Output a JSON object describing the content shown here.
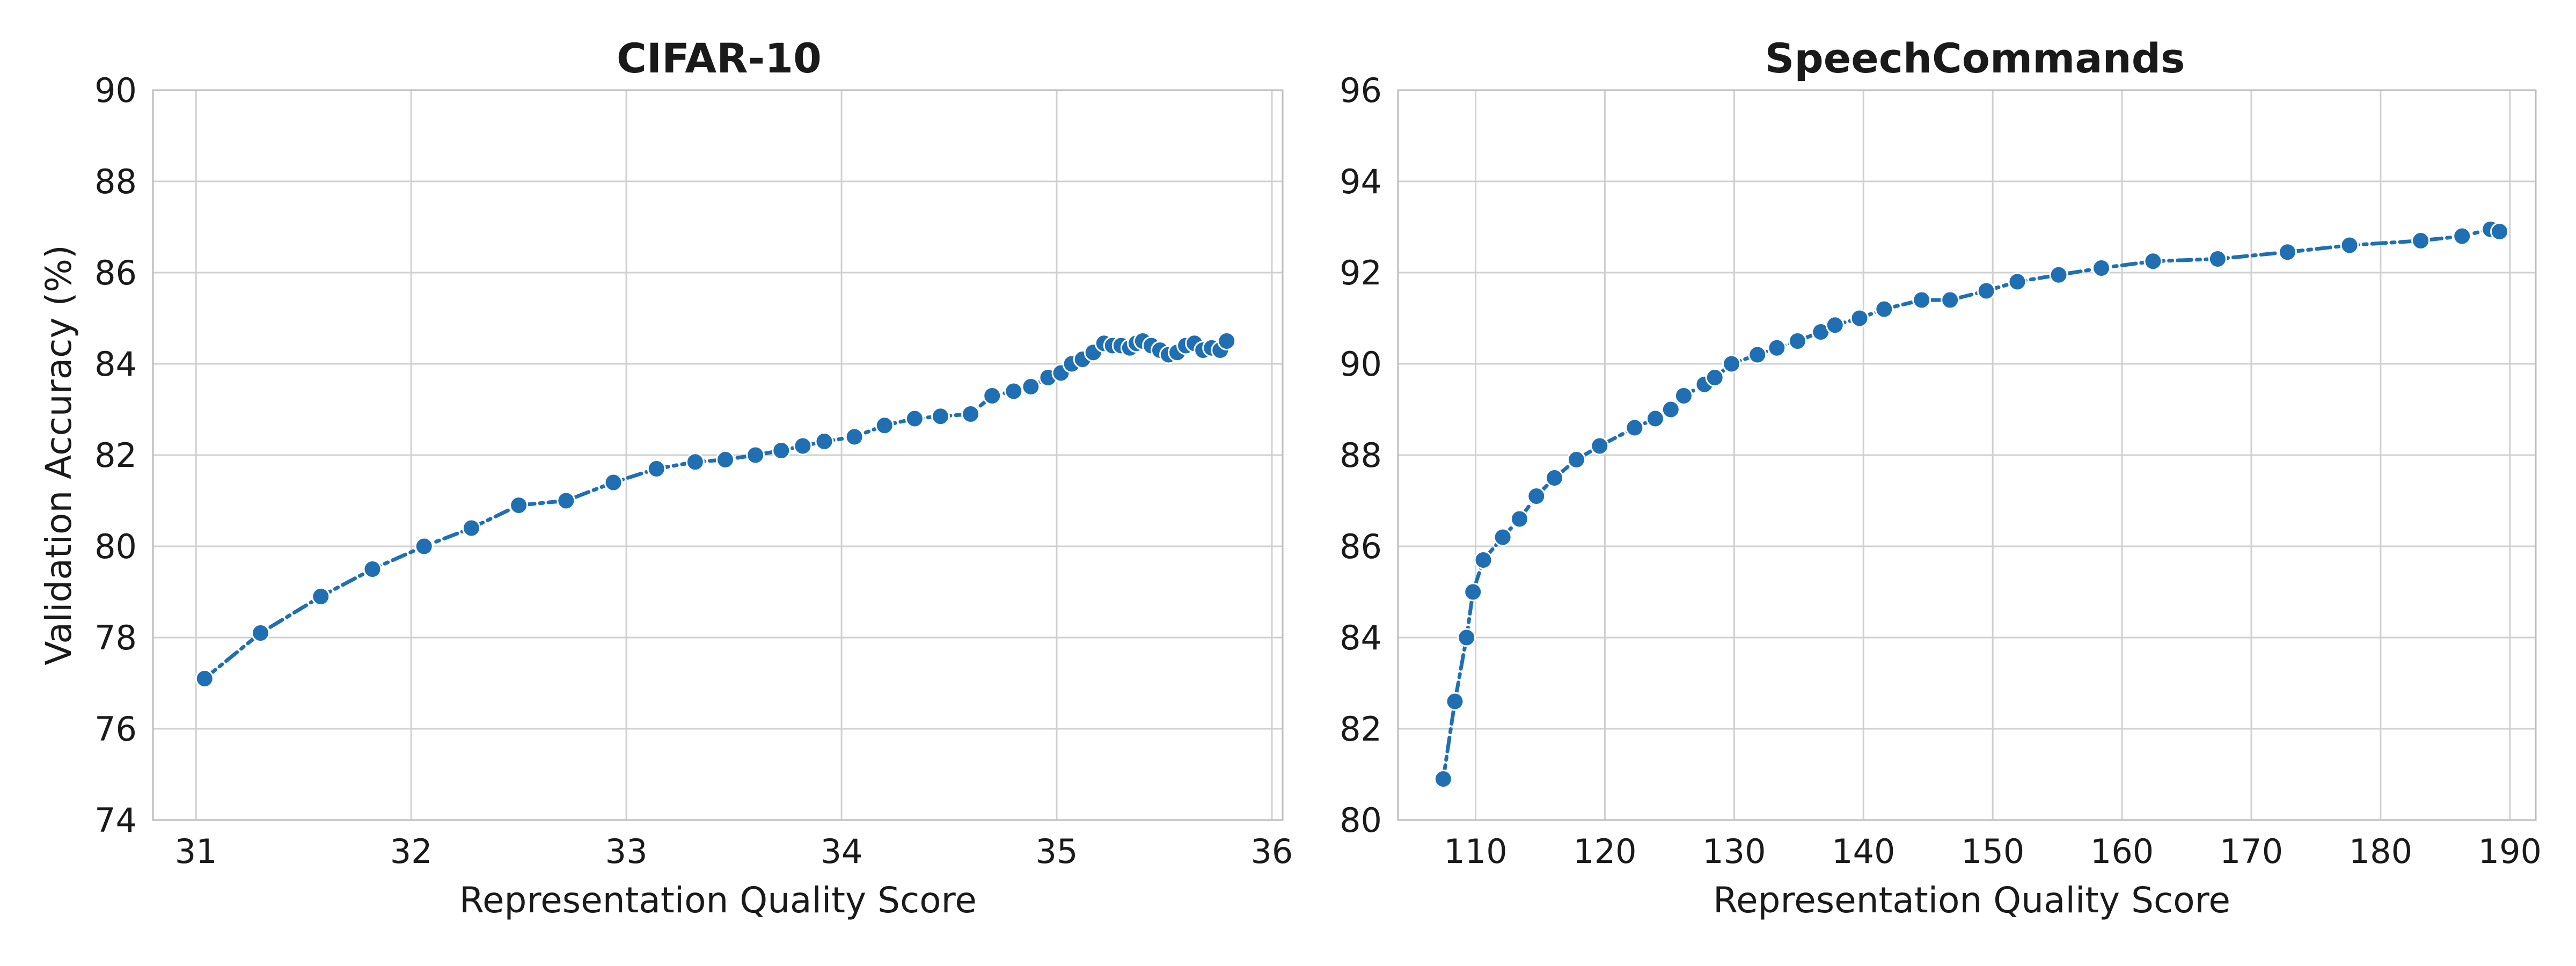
{
  "colors": {
    "series": "#1f6fb2",
    "grid": "#d0d0d0",
    "frame": "#bdbdbd"
  },
  "shared": {
    "ylabel": "Validation Accuracy (%)"
  },
  "chart_data": [
    {
      "type": "line",
      "title": "CIFAR-10",
      "xlabel": "Representation Quality Score",
      "ylabel": "Validation Accuracy (%)",
      "xlim": [
        30.8,
        36.05
      ],
      "ylim": [
        74,
        90
      ],
      "xticks": [
        31,
        32,
        33,
        34,
        35,
        36
      ],
      "yticks": [
        74,
        76,
        78,
        80,
        82,
        84,
        86,
        88,
        90
      ],
      "grid": true,
      "series": [
        {
          "x": [
            31.04,
            31.3,
            31.58,
            31.82,
            32.06,
            32.28,
            32.5,
            32.72,
            32.94,
            33.14,
            33.32,
            33.46,
            33.6,
            33.72,
            33.82,
            33.92,
            34.06,
            34.2,
            34.34,
            34.46,
            34.6,
            34.7,
            34.8,
            34.88,
            34.96,
            35.02,
            35.07,
            35.12,
            35.17,
            35.22,
            35.26,
            35.3,
            35.34,
            35.37,
            35.4,
            35.44,
            35.48,
            35.52,
            35.56,
            35.6,
            35.64,
            35.68,
            35.72,
            35.76,
            35.79
          ],
          "y": [
            77.1,
            78.1,
            78.9,
            79.5,
            80.0,
            80.4,
            80.9,
            81.0,
            81.4,
            81.7,
            81.85,
            81.9,
            82.0,
            82.1,
            82.2,
            82.3,
            82.4,
            82.65,
            82.8,
            82.85,
            82.9,
            83.3,
            83.4,
            83.5,
            83.7,
            83.8,
            84.0,
            84.1,
            84.25,
            84.45,
            84.4,
            84.4,
            84.35,
            84.45,
            84.5,
            84.4,
            84.3,
            84.2,
            84.25,
            84.4,
            84.45,
            84.3,
            84.35,
            84.3,
            84.5
          ]
        }
      ]
    },
    {
      "type": "line",
      "title": "SpeechCommands",
      "xlabel": "Representation Quality Score",
      "ylabel": "",
      "xlim": [
        104,
        192
      ],
      "ylim": [
        80,
        96
      ],
      "xticks": [
        110,
        120,
        130,
        140,
        150,
        160,
        170,
        180,
        190
      ],
      "yticks": [
        80,
        82,
        84,
        86,
        88,
        90,
        92,
        94,
        96
      ],
      "grid": true,
      "series": [
        {
          "x": [
            107.5,
            108.4,
            109.3,
            109.8,
            110.6,
            112.1,
            113.4,
            114.7,
            116.1,
            117.8,
            119.6,
            122.3,
            123.9,
            125.1,
            126.1,
            127.7,
            128.5,
            129.8,
            131.8,
            133.3,
            134.9,
            136.7,
            137.8,
            139.7,
            141.6,
            144.5,
            146.7,
            149.5,
            151.9,
            155.1,
            158.4,
            162.4,
            167.4,
            172.8,
            177.6,
            183.1,
            186.3,
            188.5,
            189.2
          ],
          "y": [
            80.9,
            82.6,
            84.0,
            85.0,
            85.7,
            86.2,
            86.6,
            87.1,
            87.5,
            87.9,
            88.2,
            88.6,
            88.8,
            89.0,
            89.3,
            89.55,
            89.7,
            90.0,
            90.2,
            90.35,
            90.5,
            90.7,
            90.85,
            91.0,
            91.2,
            91.4,
            91.4,
            91.6,
            91.8,
            91.95,
            92.1,
            92.25,
            92.3,
            92.45,
            92.6,
            92.7,
            92.8,
            92.95,
            92.9
          ]
        }
      ]
    }
  ]
}
